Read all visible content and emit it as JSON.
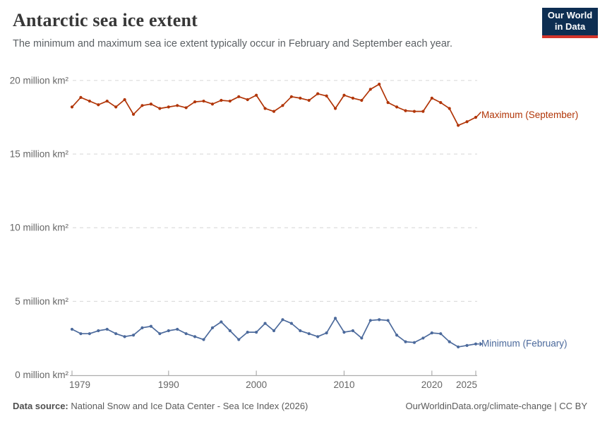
{
  "header": {
    "title": "Antarctic sea ice extent",
    "subtitle": "The minimum and maximum sea ice extent typically occur in February and September each year.",
    "logo_line1": "Our World",
    "logo_line2": "in Data"
  },
  "chart_data": {
    "type": "line",
    "x": [
      1979,
      1980,
      1981,
      1982,
      1983,
      1984,
      1985,
      1986,
      1987,
      1988,
      1989,
      1990,
      1991,
      1992,
      1993,
      1994,
      1995,
      1996,
      1997,
      1998,
      1999,
      2000,
      2001,
      2002,
      2003,
      2004,
      2005,
      2006,
      2007,
      2008,
      2009,
      2010,
      2011,
      2012,
      2013,
      2014,
      2015,
      2016,
      2017,
      2018,
      2019,
      2020,
      2021,
      2022,
      2023,
      2024,
      2025
    ],
    "series": [
      {
        "key": "maximum-september",
        "name": "Maximum (September)",
        "color": "#B13507",
        "values": [
          18.2,
          18.85,
          18.6,
          18.35,
          18.6,
          18.2,
          18.7,
          17.7,
          18.3,
          18.4,
          18.1,
          18.2,
          18.3,
          18.15,
          18.55,
          18.6,
          18.4,
          18.65,
          18.6,
          18.9,
          18.7,
          19.0,
          18.1,
          17.9,
          18.3,
          18.9,
          18.8,
          18.65,
          19.1,
          18.95,
          18.1,
          19.0,
          18.8,
          18.65,
          19.4,
          19.75,
          18.5,
          18.2,
          17.95,
          17.9,
          17.9,
          18.8,
          18.5,
          18.1,
          16.95,
          17.2,
          17.5
        ]
      },
      {
        "key": "minimum-february",
        "name": "Minimum (February)",
        "color": "#4C6A9C",
        "values": [
          3.1,
          2.8,
          2.8,
          3.0,
          3.1,
          2.8,
          2.6,
          2.7,
          3.2,
          3.3,
          2.8,
          3.0,
          3.1,
          2.8,
          2.6,
          2.4,
          3.2,
          3.6,
          3.0,
          2.4,
          2.9,
          2.9,
          3.5,
          3.0,
          3.75,
          3.5,
          3.0,
          2.8,
          2.6,
          2.85,
          3.85,
          2.9,
          3.0,
          2.5,
          3.7,
          3.75,
          3.7,
          2.7,
          2.25,
          2.2,
          2.5,
          2.85,
          2.8,
          2.25,
          1.9,
          2.0,
          2.1
        ]
      }
    ],
    "title": "Antarctic sea ice extent",
    "xlabel": "",
    "ylabel": "million km²",
    "xlim": [
      1979,
      2025
    ],
    "ylim": [
      0,
      20
    ],
    "yticks": [
      {
        "value": 0,
        "label": "0 million km²"
      },
      {
        "value": 5,
        "label": "5 million km²"
      },
      {
        "value": 10,
        "label": "10 million km²"
      },
      {
        "value": 15,
        "label": "15 million km²"
      },
      {
        "value": 20,
        "label": "20 million km²"
      }
    ],
    "xticks": [
      1979,
      1990,
      2000,
      2010,
      2020,
      2025
    ],
    "grid": "horizontal-dashed",
    "legend_position": "end-of-line-labels"
  },
  "footer": {
    "datasource_label": "Data source:",
    "datasource_text": " National Snow and Ice Data Center - Sea Ice Index (2026)",
    "attribution": "OurWorldinData.org/climate-change | CC BY"
  },
  "colors": {
    "maximum_series": "#B13507",
    "minimum_series": "#4C6A9C",
    "gridline": "#d6d6d6",
    "axis": "#adadad",
    "tick_label": "#666666",
    "logo_bg": "#0d2e52",
    "logo_stripe": "#d2342b"
  }
}
